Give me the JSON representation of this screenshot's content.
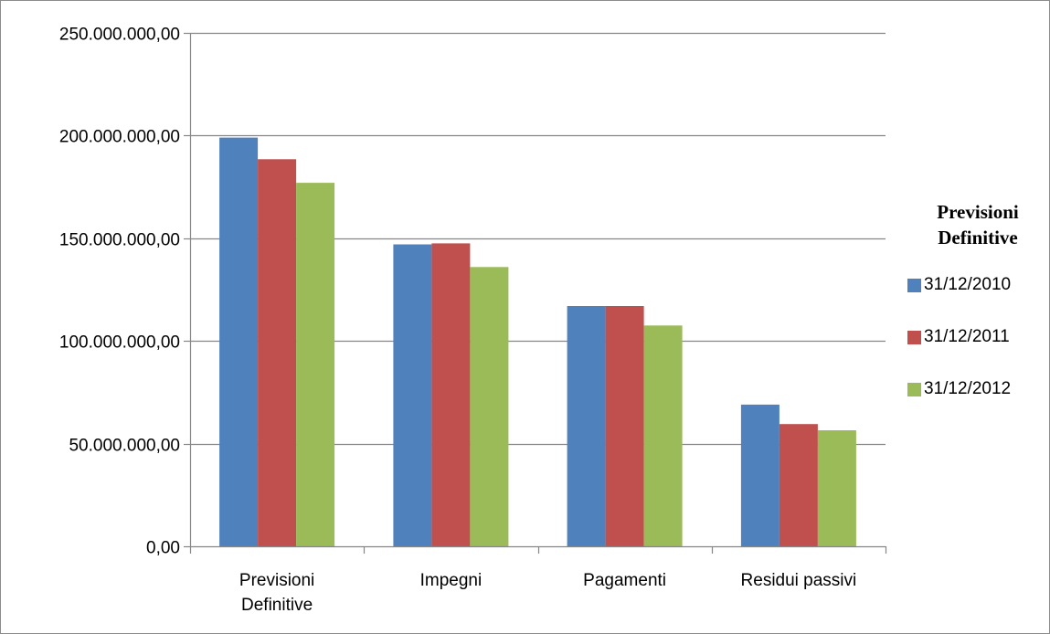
{
  "chart_data": {
    "type": "bar",
    "categories": [
      [
        "Previsioni",
        "Definitive"
      ],
      [
        "Impegni"
      ],
      [
        "Pagamenti"
      ],
      [
        "Residui passivi"
      ]
    ],
    "series": [
      {
        "name": "31/12/2010",
        "color": "#4f81bd",
        "values": [
          199000000,
          147000000,
          117000000,
          69000000
        ]
      },
      {
        "name": "31/12/2011",
        "color": "#c0504d",
        "values": [
          188500000,
          147500000,
          117000000,
          59500000
        ]
      },
      {
        "name": "31/12/2012",
        "color": "#9bbb59",
        "values": [
          177000000,
          136000000,
          107500000,
          56500000
        ]
      }
    ],
    "ylim": [
      0,
      250000000
    ],
    "yticks": [
      0,
      50000000,
      100000000,
      150000000,
      200000000,
      250000000
    ],
    "ytick_labels": [
      "0,00",
      "50.000.000,00",
      "100.000.000,00",
      "150.000.000,00",
      "200.000.000,00",
      "250.000.000,00"
    ],
    "legend": {
      "title": "Previsioni Definitive",
      "placement": "right"
    },
    "grid": true,
    "gridline_color": "#868686",
    "axis_color": "#868686"
  }
}
